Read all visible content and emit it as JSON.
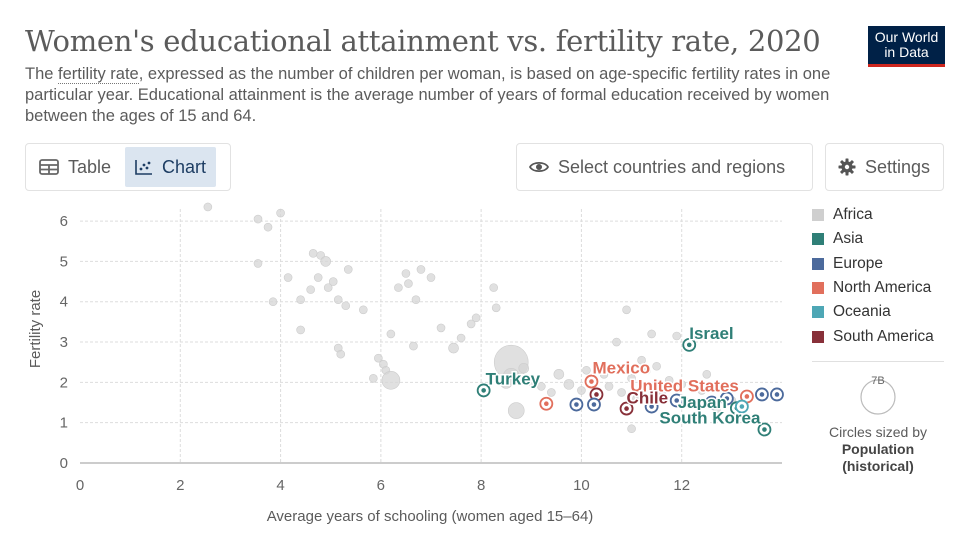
{
  "header": {
    "title": "Women's educational attainment vs. fertility rate, 2020",
    "subtitle_before": "The ",
    "subtitle_link": "fertility rate",
    "subtitle_after": ", expressed as the number of children per woman, is based on age-specific fertility rates in one particular year. Educational attainment is the average number of years of formal education received by women between the ages of 15 and 64."
  },
  "logo": {
    "line1": "Our World",
    "line2": "in Data",
    "colors": {
      "bg": "#002147",
      "accent": "#ce261e"
    }
  },
  "toolbar": {
    "tabs": [
      {
        "label": "Table",
        "icon": "table-icon",
        "active": false
      },
      {
        "label": "Chart",
        "icon": "scatter-chart-icon",
        "active": true
      }
    ],
    "select_label": "Select countries and regions",
    "select_icon": "eye-icon",
    "settings_label": "Settings",
    "settings_icon": "gear-icon"
  },
  "legend": {
    "items": [
      {
        "label": "Africa",
        "color": "#cfcfcf"
      },
      {
        "label": "Asia",
        "color": "#2f7f77"
      },
      {
        "label": "Europe",
        "color": "#4c6a9c"
      },
      {
        "label": "North America",
        "color": "#e16f5c"
      },
      {
        "label": "Oceania",
        "color": "#4ea7b5"
      },
      {
        "label": "South America",
        "color": "#883039"
      }
    ],
    "size_value": "7B",
    "size_caption": "Circles sized by",
    "size_variable_line1": "Population",
    "size_variable_line2": "(historical)"
  },
  "chart_data": {
    "type": "scatter",
    "xlabel": "Average years of schooling (women aged 15–64)",
    "ylabel": "Fertility rate",
    "xlim": [
      0,
      14
    ],
    "ylim": [
      0,
      6.3
    ],
    "x_ticks": [
      "0",
      "2",
      "4",
      "6",
      "8",
      "10",
      "12"
    ],
    "y_ticks": [
      "0",
      "1",
      "2",
      "3",
      "4",
      "5",
      "6"
    ],
    "grid": true,
    "highlighted": [
      {
        "name": "Israel",
        "region": "Asia",
        "x": 12.15,
        "y": 2.93,
        "label": true
      },
      {
        "name": "Turkey",
        "region": "Asia",
        "x": 8.05,
        "y": 1.8,
        "label": true
      },
      {
        "name": "Mexico",
        "region": "North America",
        "x": 10.2,
        "y": 2.02,
        "label": true
      },
      {
        "name": "United States",
        "region": "North America",
        "x": 13.3,
        "y": 1.65,
        "label": true
      },
      {
        "name": "Chile",
        "region": "South America",
        "x": 10.9,
        "y": 1.35,
        "label": true
      },
      {
        "name": "Japan",
        "region": "Asia",
        "x": 13.1,
        "y": 1.36,
        "label": true
      },
      {
        "name": "South Korea",
        "region": "Asia",
        "x": 13.65,
        "y": 0.83,
        "label": true
      },
      {
        "name": "",
        "region": "North America",
        "x": 9.3,
        "y": 1.47
      },
      {
        "name": "",
        "region": "South America",
        "x": 10.3,
        "y": 1.7
      },
      {
        "name": "",
        "region": "Europe",
        "x": 9.9,
        "y": 1.45
      },
      {
        "name": "",
        "region": "Europe",
        "x": 10.25,
        "y": 1.45
      },
      {
        "name": "",
        "region": "Europe",
        "x": 11.4,
        "y": 1.4
      },
      {
        "name": "",
        "region": "Europe",
        "x": 11.9,
        "y": 1.55
      },
      {
        "name": "",
        "region": "Europe",
        "x": 12.6,
        "y": 1.5
      },
      {
        "name": "",
        "region": "Europe",
        "x": 12.9,
        "y": 1.6
      },
      {
        "name": "",
        "region": "Europe",
        "x": 13.6,
        "y": 1.7
      },
      {
        "name": "",
        "region": "Europe",
        "x": 13.9,
        "y": 1.7
      },
      {
        "name": "",
        "region": "Oceania",
        "x": 13.2,
        "y": 1.4
      }
    ],
    "background_points": [
      [
        2.55,
        6.35,
        4
      ],
      [
        3.55,
        6.05,
        4
      ],
      [
        3.75,
        5.85,
        4
      ],
      [
        4.0,
        6.2,
        4
      ],
      [
        3.55,
        4.95,
        4
      ],
      [
        3.85,
        4.0,
        4
      ],
      [
        4.15,
        4.6,
        4
      ],
      [
        4.4,
        4.05,
        4
      ],
      [
        4.6,
        4.3,
        4
      ],
      [
        4.65,
        5.2,
        4
      ],
      [
        4.8,
        5.15,
        4
      ],
      [
        4.75,
        4.6,
        4
      ],
      [
        4.9,
        5.0,
        5
      ],
      [
        4.95,
        4.35,
        4
      ],
      [
        5.05,
        4.5,
        4
      ],
      [
        5.15,
        4.05,
        4
      ],
      [
        5.3,
        3.9,
        4
      ],
      [
        5.35,
        4.8,
        4
      ],
      [
        5.65,
        3.8,
        4
      ],
      [
        4.4,
        3.3,
        4
      ],
      [
        5.15,
        2.85,
        4
      ],
      [
        5.2,
        2.7,
        4
      ],
      [
        5.85,
        2.1,
        4
      ],
      [
        5.95,
        2.6,
        4
      ],
      [
        6.05,
        2.45,
        4
      ],
      [
        6.1,
        2.3,
        4
      ],
      [
        6.2,
        3.2,
        4
      ],
      [
        6.35,
        4.35,
        4
      ],
      [
        6.5,
        4.7,
        4
      ],
      [
        6.55,
        4.45,
        4
      ],
      [
        6.65,
        2.9,
        4
      ],
      [
        6.7,
        4.05,
        4
      ],
      [
        6.8,
        4.8,
        4
      ],
      [
        7.0,
        4.6,
        4
      ],
      [
        7.2,
        3.35,
        4
      ],
      [
        7.45,
        2.85,
        5
      ],
      [
        7.6,
        3.1,
        4
      ],
      [
        7.8,
        3.45,
        4
      ],
      [
        7.9,
        3.6,
        4
      ],
      [
        8.25,
        4.35,
        4
      ],
      [
        8.3,
        3.85,
        4
      ],
      [
        8.6,
        2.5,
        17
      ],
      [
        8.5,
        2.0,
        6
      ],
      [
        8.6,
        2.15,
        8
      ],
      [
        8.85,
        2.35,
        5
      ],
      [
        8.7,
        1.3,
        8
      ],
      [
        9.0,
        2.05,
        5
      ],
      [
        9.2,
        1.9,
        4
      ],
      [
        9.4,
        1.75,
        4
      ],
      [
        9.55,
        2.2,
        5
      ],
      [
        9.75,
        1.95,
        5
      ],
      [
        10.0,
        1.8,
        4
      ],
      [
        10.1,
        2.3,
        4
      ],
      [
        10.45,
        2.2,
        4
      ],
      [
        10.55,
        1.9,
        4
      ],
      [
        10.7,
        3.0,
        4
      ],
      [
        10.8,
        1.75,
        4
      ],
      [
        10.9,
        3.8,
        4
      ],
      [
        11.0,
        2.1,
        4
      ],
      [
        11.1,
        1.6,
        4
      ],
      [
        11.2,
        2.55,
        4
      ],
      [
        11.3,
        2.3,
        4
      ],
      [
        11.4,
        3.2,
        4
      ],
      [
        11.5,
        2.4,
        4
      ],
      [
        11.6,
        1.75,
        4
      ],
      [
        11.75,
        2.05,
        4
      ],
      [
        11.9,
        3.15,
        4
      ],
      [
        12.0,
        1.95,
        4
      ],
      [
        12.1,
        1.5,
        4
      ],
      [
        12.4,
        1.8,
        4
      ],
      [
        12.5,
        2.2,
        4
      ],
      [
        12.7,
        1.35,
        4
      ],
      [
        13.0,
        1.55,
        4
      ],
      [
        11.0,
        0.85,
        4
      ],
      [
        6.2,
        2.05,
        9
      ]
    ]
  }
}
